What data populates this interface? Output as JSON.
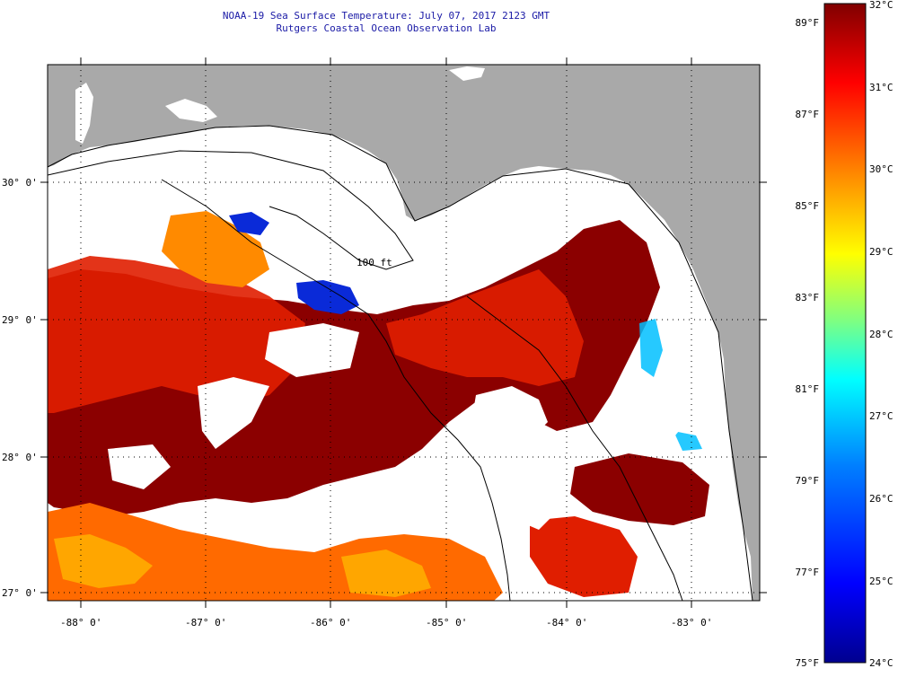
{
  "header": {
    "title_line1": "NOAA-19 Sea Surface Temperature:  July 07, 2017 2123 GMT",
    "title_line2": "Rutgers Coastal Ocean Observation Lab"
  },
  "map": {
    "lon_labels": [
      "-88° 0'",
      "-87° 0'",
      "-86° 0'",
      "-85° 0'",
      "-84° 0'",
      "-83° 0'"
    ],
    "lat_labels": [
      "30° 0'",
      "29° 0'",
      "28° 0'",
      "27° 0'"
    ],
    "contour_label": "100 ft",
    "colors": {
      "land": "#a9a9a9",
      "no_data": "#ffffff",
      "hot": "#8b0000",
      "warm": "#e01e00",
      "mid": "#ff6a00",
      "cool": "#ffc800",
      "cold": "#0a2ad8"
    }
  },
  "colorbar": {
    "fahrenheit_labels": [
      "89°F",
      "87°F",
      "85°F",
      "83°F",
      "81°F",
      "79°F",
      "77°F",
      "75°F"
    ],
    "celsius_labels": [
      "32°C",
      "31°C",
      "30°C",
      "29°C",
      "28°C",
      "27°C",
      "26°C",
      "25°C",
      "24°C"
    ],
    "stops": [
      "#00008f",
      "#0000ff",
      "#0080ff",
      "#00ffff",
      "#80ff80",
      "#ffff00",
      "#ff8000",
      "#ff0000",
      "#800000"
    ]
  }
}
